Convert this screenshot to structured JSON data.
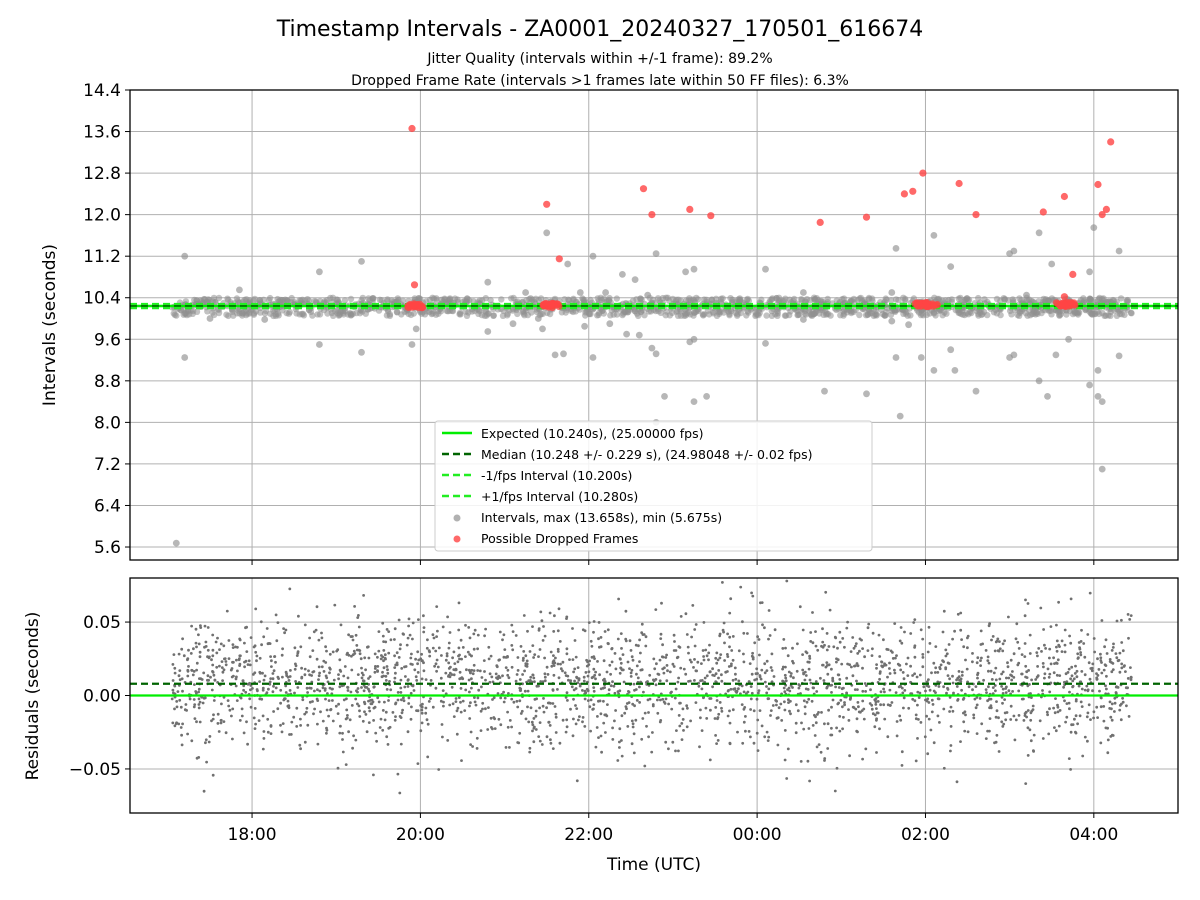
{
  "chart_data": [
    {
      "type": "scatter",
      "title": "Timestamp Intervals - ZA0001_20240327_170501_616674",
      "subtitle_lines": [
        "Jitter Quality (intervals within +/-1 frame): 89.2%",
        "Dropped Frame Rate (intervals >1 frames late within 50 FF files): 6.3%"
      ],
      "xlabel": "",
      "ylabel": "Intervals (seconds)",
      "x_tick_labels": [
        "18:00",
        "20:00",
        "22:00",
        "00:00",
        "02:00",
        "04:00"
      ],
      "x_tick_hours": [
        18,
        20,
        22,
        24,
        26,
        28
      ],
      "xlim_hours": [
        16.55,
        29.0
      ],
      "ylim": [
        5.35,
        14.4
      ],
      "y_ticks": [
        "5.6",
        "6.4",
        "7.2",
        "8.0",
        "8.8",
        "9.6",
        "10.4",
        "11.2",
        "12.0",
        "12.8",
        "13.6",
        "14.4"
      ],
      "grid": true,
      "legend_position": "lower-center",
      "lines": [
        {
          "name": "Expected (10.240s), (25.00000 fps)",
          "y": 10.24,
          "color": "#00ee00",
          "style": "solid"
        },
        {
          "name": "Median (10.248 +/- 0.229 s), (24.98048 +/- 0.02 fps)",
          "y": 10.248,
          "color": "#006400",
          "style": "dashed"
        },
        {
          "name": "-1/fps Interval (10.200s)",
          "y": 10.2,
          "color": "#22ee22",
          "style": "dashed"
        },
        {
          "name": "+1/fps Interval (10.280s)",
          "y": 10.28,
          "color": "#22ee22",
          "style": "dashed"
        }
      ],
      "series": [
        {
          "name": "Intervals, max (13.658s), min (5.675s)",
          "color": "#909090",
          "points": [
            [
              17.1,
              5.675
            ],
            [
              17.2,
              11.2
            ],
            [
              17.2,
              9.25
            ],
            [
              17.5,
              10.0
            ],
            [
              17.85,
              10.55
            ],
            [
              18.15,
              9.98
            ],
            [
              18.8,
              10.9
            ],
            [
              18.8,
              9.5
            ],
            [
              19.3,
              11.1
            ],
            [
              19.3,
              9.35
            ],
            [
              19.9,
              9.5
            ],
            [
              19.95,
              9.8
            ],
            [
              20.8,
              10.7
            ],
            [
              20.8,
              9.75
            ],
            [
              21.1,
              9.9
            ],
            [
              21.25,
              10.5
            ],
            [
              21.4,
              10.0
            ],
            [
              21.45,
              9.8
            ],
            [
              21.5,
              11.65
            ],
            [
              21.7,
              9.32
            ],
            [
              21.6,
              9.3
            ],
            [
              21.75,
              11.05
            ],
            [
              21.9,
              10.5
            ],
            [
              21.95,
              9.85
            ],
            [
              22.05,
              9.25
            ],
            [
              22.05,
              11.2
            ],
            [
              22.2,
              10.5
            ],
            [
              22.25,
              9.9
            ],
            [
              22.4,
              10.85
            ],
            [
              22.45,
              9.7
            ],
            [
              22.55,
              10.75
            ],
            [
              22.6,
              9.68
            ],
            [
              22.7,
              10.45
            ],
            [
              22.75,
              9.43
            ],
            [
              22.8,
              9.32
            ],
            [
              22.8,
              11.25
            ],
            [
              22.9,
              8.5
            ],
            [
              22.8,
              8.0
            ],
            [
              23.15,
              10.9
            ],
            [
              23.2,
              9.55
            ],
            [
              23.25,
              10.95
            ],
            [
              23.25,
              9.6
            ],
            [
              23.4,
              8.5
            ],
            [
              23.25,
              8.4
            ],
            [
              24.1,
              10.95
            ],
            [
              24.1,
              9.52
            ],
            [
              24.55,
              10.5
            ],
            [
              24.55,
              9.98
            ],
            [
              24.8,
              8.6
            ],
            [
              25.3,
              8.55
            ],
            [
              25.55,
              10.2
            ],
            [
              25.6,
              10.5
            ],
            [
              25.6,
              9.95
            ],
            [
              25.65,
              11.35
            ],
            [
              25.65,
              9.25
            ],
            [
              25.7,
              8.12
            ],
            [
              25.8,
              9.88
            ],
            [
              25.95,
              9.25
            ],
            [
              26.1,
              11.6
            ],
            [
              26.1,
              9.0
            ],
            [
              26.3,
              11.0
            ],
            [
              26.3,
              9.4
            ],
            [
              26.35,
              9.0
            ],
            [
              26.6,
              8.6
            ],
            [
              27.0,
              11.25
            ],
            [
              27.0,
              9.25
            ],
            [
              27.05,
              11.3
            ],
            [
              27.05,
              9.3
            ],
            [
              27.2,
              10.45
            ],
            [
              27.3,
              10.15
            ],
            [
              27.35,
              11.65
            ],
            [
              27.35,
              8.8
            ],
            [
              27.45,
              8.5
            ],
            [
              27.5,
              11.05
            ],
            [
              27.55,
              9.3
            ],
            [
              27.7,
              9.6
            ],
            [
              27.95,
              10.9
            ],
            [
              27.95,
              8.72
            ],
            [
              28.05,
              9.0
            ],
            [
              28.05,
              8.5
            ],
            [
              28.1,
              8.4
            ],
            [
              28.1,
              7.1
            ],
            [
              28.0,
              11.75
            ],
            [
              28.3,
              11.3
            ],
            [
              28.3,
              9.28
            ],
            [
              28.4,
              10.35
            ]
          ]
        },
        {
          "name": "Possible Dropped Frames",
          "color": "#ff4444",
          "points": [
            [
              19.9,
              13.658
            ],
            [
              19.93,
              10.65
            ],
            [
              21.5,
              12.2
            ],
            [
              21.65,
              11.15
            ],
            [
              22.65,
              12.5
            ],
            [
              22.75,
              12.0
            ],
            [
              23.2,
              12.1
            ],
            [
              23.45,
              11.98
            ],
            [
              24.75,
              11.85
            ],
            [
              25.3,
              11.95
            ],
            [
              25.75,
              12.4
            ],
            [
              25.85,
              12.45
            ],
            [
              25.97,
              12.8
            ],
            [
              26.4,
              12.6
            ],
            [
              26.6,
              12.0
            ],
            [
              27.4,
              12.05
            ],
            [
              27.65,
              12.35
            ],
            [
              27.75,
              10.85
            ],
            [
              28.05,
              12.58
            ],
            [
              28.1,
              12.0
            ],
            [
              28.15,
              12.1
            ],
            [
              28.2,
              13.4
            ],
            [
              27.65,
              10.42
            ]
          ],
          "clusters": [
            {
              "x_start": 19.85,
              "x_end": 20.03,
              "y": 10.25
            },
            {
              "x_start": 21.45,
              "x_end": 21.65,
              "y": 10.25
            },
            {
              "x_start": 25.85,
              "x_end": 26.15,
              "y": 10.27
            },
            {
              "x_start": 27.55,
              "x_end": 27.78,
              "y": 10.27
            }
          ]
        }
      ],
      "dense_band": {
        "x_start": 17.05,
        "x_end": 28.45,
        "y_low": 10.05,
        "y_high": 10.4,
        "color": "#909090"
      }
    },
    {
      "type": "scatter",
      "title": "",
      "xlabel": "Time (UTC)",
      "ylabel": "Residuals (seconds)",
      "xlim_hours": [
        16.55,
        29.0
      ],
      "ylim": [
        -0.08,
        0.08
      ],
      "y_ticks": [
        "−0.05",
        "0.00",
        "0.05"
      ],
      "y_tick_values": [
        -0.05,
        0.0,
        0.05
      ],
      "grid": true,
      "lines": [
        {
          "y": 0.0,
          "color": "#00ee00",
          "style": "solid"
        },
        {
          "y": 0.008,
          "color": "#006400",
          "style": "dashed"
        }
      ],
      "series": [
        {
          "color": "#707070",
          "x_range": [
            17.05,
            28.45
          ],
          "spread_sd": 0.022,
          "center": 0.008,
          "count": 2600
        }
      ]
    }
  ]
}
